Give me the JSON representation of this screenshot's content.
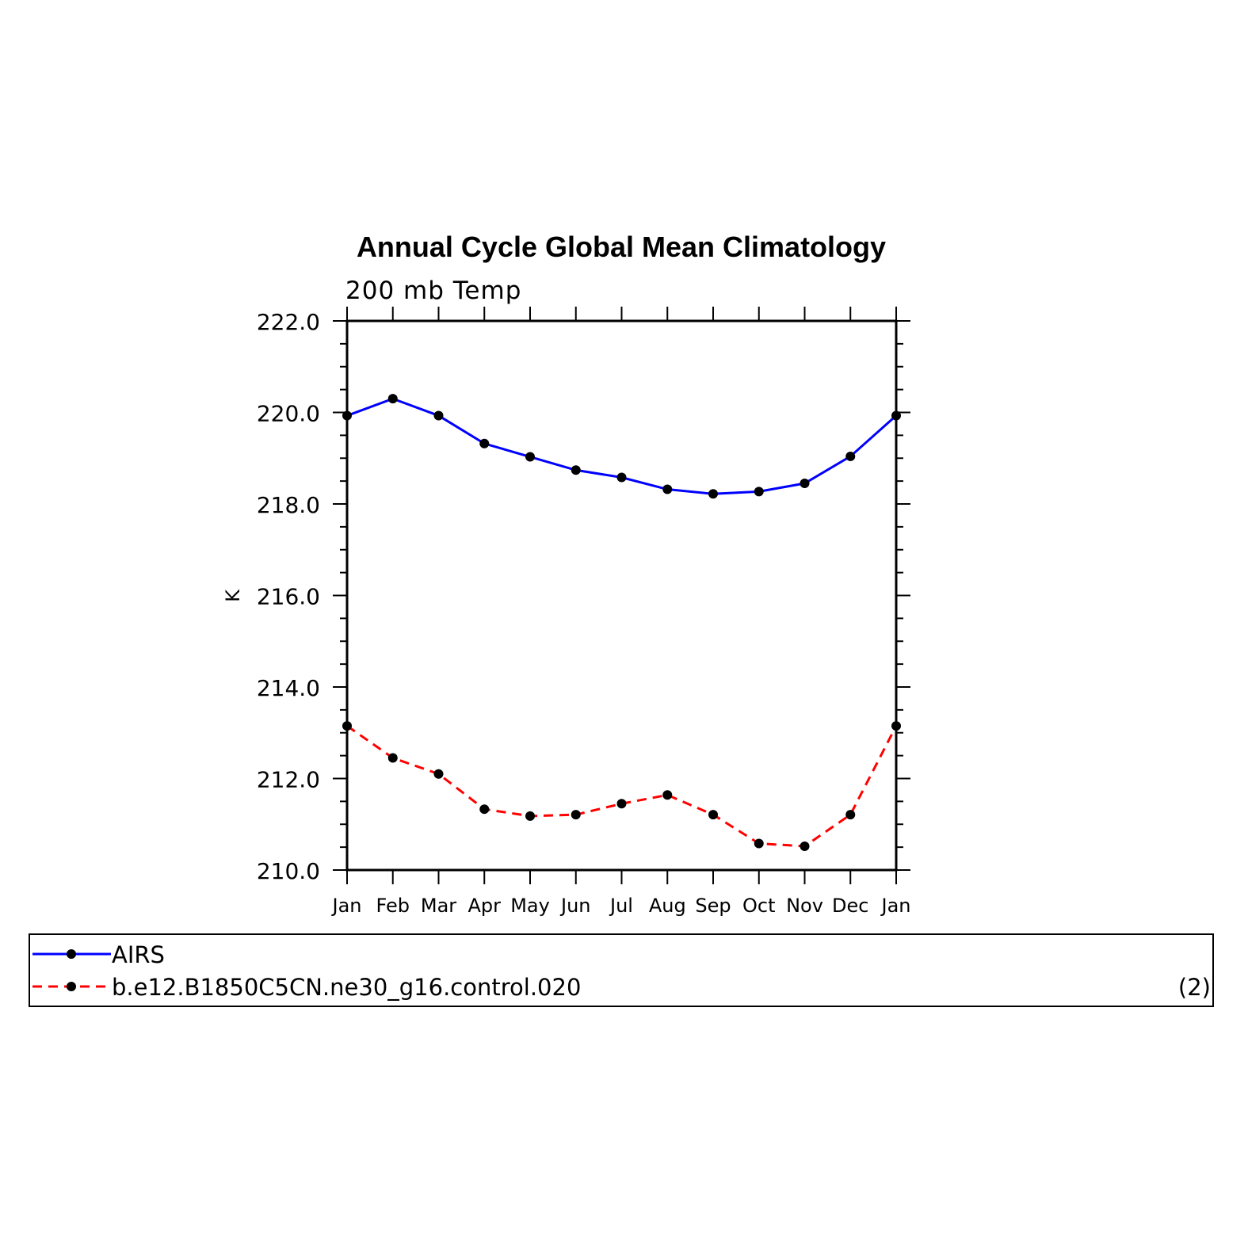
{
  "chart_data": {
    "type": "line",
    "title": "Annual Cycle Global Mean Climatology",
    "subtitle": "200 mb Temp",
    "ylabel": "K",
    "ylim": [
      210,
      222
    ],
    "yticks": [
      "210.0",
      "212.0",
      "214.0",
      "216.0",
      "218.0",
      "220.0",
      "222.0"
    ],
    "categories": [
      "Jan",
      "Feb",
      "Mar",
      "Apr",
      "May",
      "Jun",
      "Jul",
      "Aug",
      "Sep",
      "Oct",
      "Nov",
      "Dec",
      "Jan"
    ],
    "series": [
      {
        "name": "AIRS",
        "color": "#0000ff",
        "dash": "solid",
        "values": [
          219.93,
          220.3,
          219.93,
          219.32,
          219.03,
          218.74,
          218.58,
          218.32,
          218.22,
          218.27,
          218.45,
          219.04,
          219.93
        ]
      },
      {
        "name": "b.e12.B1850C5CN.ne30_g16.control.020",
        "color": "#ff0000",
        "dash": "dashed",
        "values": [
          213.15,
          212.45,
          212.1,
          211.33,
          211.18,
          211.21,
          211.45,
          211.64,
          211.21,
          210.58,
          210.52,
          211.21,
          213.15
        ]
      }
    ],
    "legend_note": "(2)"
  }
}
